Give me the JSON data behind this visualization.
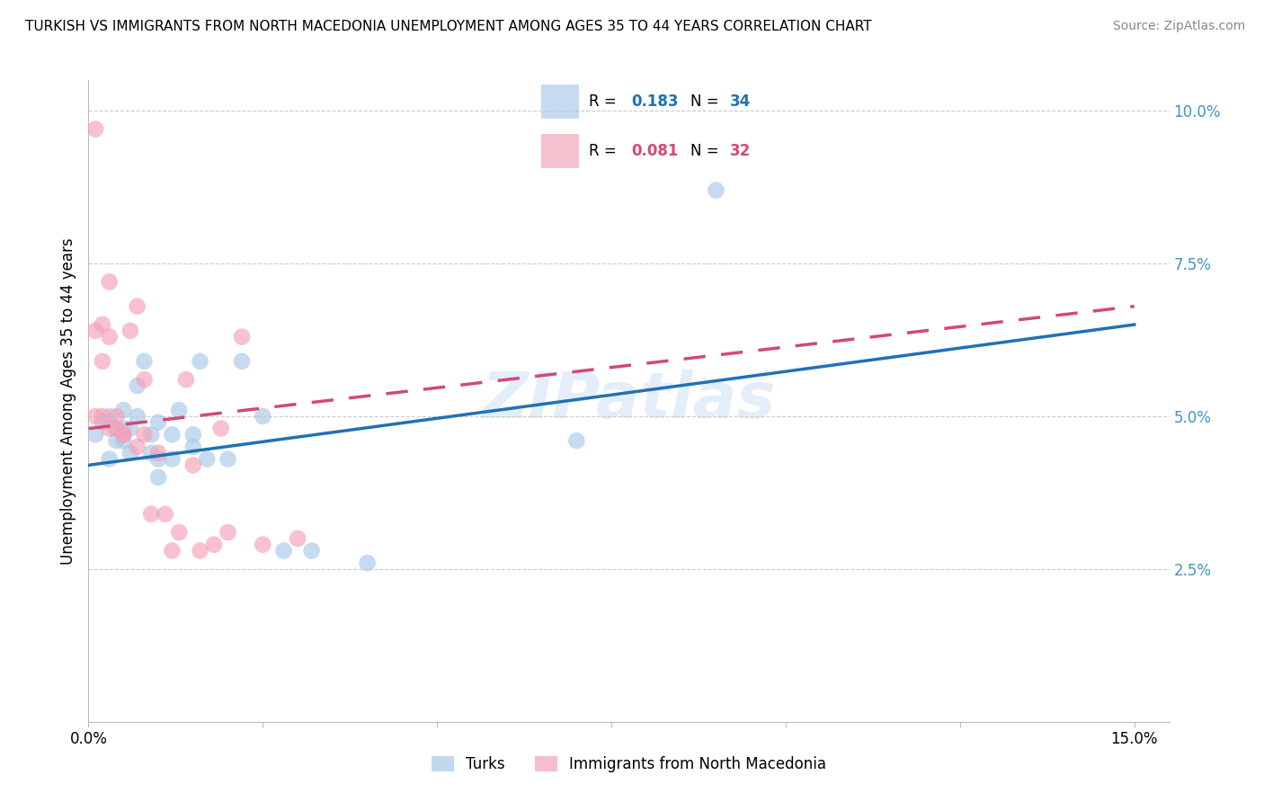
{
  "title": "TURKISH VS IMMIGRANTS FROM NORTH MACEDONIA UNEMPLOYMENT AMONG AGES 35 TO 44 YEARS CORRELATION CHART",
  "source": "Source: ZipAtlas.com",
  "ylabel": "Unemployment Among Ages 35 to 44 years",
  "xlim": [
    0.0,
    0.155
  ],
  "ylim": [
    0.0,
    0.105
  ],
  "blue_color": "#a8c8e8",
  "pink_color": "#f4a0b8",
  "blue_line_color": "#2171b5",
  "pink_line_color": "#d44878",
  "right_axis_color": "#4292c6",
  "grid_color": "#cccccc",
  "background_color": "#ffffff",
  "legend_R_blue": "0.183",
  "legend_N_blue": "34",
  "legend_R_pink": "0.081",
  "legend_N_pink": "32",
  "turks_x": [
    0.001,
    0.002,
    0.003,
    0.003,
    0.004,
    0.004,
    0.005,
    0.005,
    0.005,
    0.006,
    0.006,
    0.007,
    0.007,
    0.008,
    0.009,
    0.009,
    0.01,
    0.01,
    0.01,
    0.012,
    0.012,
    0.013,
    0.015,
    0.015,
    0.016,
    0.017,
    0.02,
    0.022,
    0.025,
    0.028,
    0.032,
    0.04,
    0.07,
    0.09
  ],
  "turks_y": [
    0.047,
    0.049,
    0.043,
    0.05,
    0.048,
    0.046,
    0.051,
    0.048,
    0.046,
    0.044,
    0.048,
    0.05,
    0.055,
    0.059,
    0.044,
    0.047,
    0.049,
    0.043,
    0.04,
    0.047,
    0.043,
    0.051,
    0.047,
    0.045,
    0.059,
    0.043,
    0.043,
    0.059,
    0.05,
    0.028,
    0.028,
    0.026,
    0.046,
    0.087
  ],
  "macedonia_x": [
    0.001,
    0.001,
    0.001,
    0.002,
    0.002,
    0.002,
    0.003,
    0.003,
    0.003,
    0.004,
    0.004,
    0.005,
    0.005,
    0.006,
    0.007,
    0.007,
    0.008,
    0.008,
    0.009,
    0.01,
    0.011,
    0.012,
    0.013,
    0.014,
    0.015,
    0.016,
    0.018,
    0.019,
    0.02,
    0.022,
    0.025,
    0.03
  ],
  "macedonia_y": [
    0.097,
    0.064,
    0.05,
    0.065,
    0.059,
    0.05,
    0.048,
    0.072,
    0.063,
    0.048,
    0.05,
    0.047,
    0.047,
    0.064,
    0.068,
    0.045,
    0.056,
    0.047,
    0.034,
    0.044,
    0.034,
    0.028,
    0.031,
    0.056,
    0.042,
    0.028,
    0.029,
    0.048,
    0.031,
    0.063,
    0.029,
    0.03
  ],
  "turks_line_x": [
    0.0,
    0.15
  ],
  "turks_line_y": [
    0.042,
    0.065
  ],
  "macedonia_line_x": [
    0.0,
    0.15
  ],
  "macedonia_line_y": [
    0.048,
    0.068
  ]
}
